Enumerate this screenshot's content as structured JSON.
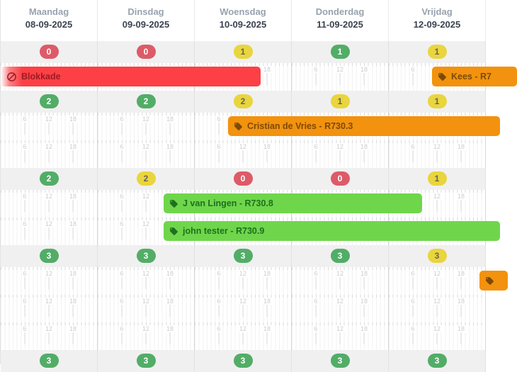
{
  "header": {
    "days": [
      {
        "name": "Maandag",
        "date": "08-09-2025"
      },
      {
        "name": "Dinsdag",
        "date": "09-09-2025"
      },
      {
        "name": "Woensdag",
        "date": "10-09-2025"
      },
      {
        "name": "Donderdag",
        "date": "11-09-2025"
      },
      {
        "name": "Vrijdag",
        "date": "12-09-2025"
      }
    ]
  },
  "timeline": {
    "tick_labels": [
      "6",
      "12",
      "18"
    ]
  },
  "rows": [
    {
      "badges": [
        {
          "value": "0",
          "color": "red"
        },
        {
          "value": "0",
          "color": "red"
        },
        {
          "value": "1",
          "color": "yellow"
        },
        {
          "value": "1",
          "color": "green"
        },
        {
          "value": "1",
          "color": "yellow"
        }
      ]
    },
    {
      "badges": [
        {
          "value": "2",
          "color": "green"
        },
        {
          "value": "2",
          "color": "green"
        },
        {
          "value": "2",
          "color": "yellow"
        },
        {
          "value": "1",
          "color": "yellow"
        },
        {
          "value": "1",
          "color": "yellow"
        }
      ]
    },
    {
      "badges": [
        {
          "value": "2",
          "color": "green"
        },
        {
          "value": "2",
          "color": "yellow"
        },
        {
          "value": "0",
          "color": "red"
        },
        {
          "value": "0",
          "color": "red"
        },
        {
          "value": "1",
          "color": "yellow"
        }
      ]
    },
    {
      "badges": [
        {
          "value": "3",
          "color": "green"
        },
        {
          "value": "3",
          "color": "green"
        },
        {
          "value": "3",
          "color": "green"
        },
        {
          "value": "3",
          "color": "green"
        },
        {
          "value": "3",
          "color": "yellow"
        }
      ]
    },
    {
      "badges": [
        {
          "value": "3",
          "color": "green"
        },
        {
          "value": "3",
          "color": "green"
        },
        {
          "value": "3",
          "color": "green"
        },
        {
          "value": "3",
          "color": "green"
        },
        {
          "value": "3",
          "color": "green"
        }
      ]
    }
  ],
  "events": {
    "blokkade": {
      "label": "Blokkade",
      "type": "blocked",
      "icon": "no-entry-icon"
    },
    "kees": {
      "label": "Kees - R7",
      "type": "reservation",
      "icon": "tag-icon"
    },
    "cristian": {
      "label": "Cristian de Vries - R730.3",
      "type": "reservation",
      "icon": "tag-icon"
    },
    "j_van_lingen": {
      "label": "J van Lingen - R730.8",
      "type": "reservation",
      "icon": "tag-icon"
    },
    "john_tester": {
      "label": "john tester - R730.9",
      "type": "reservation",
      "icon": "tag-icon"
    },
    "unlabeled": {
      "label": "",
      "type": "reservation",
      "icon": "tag-icon"
    }
  },
  "colors": {
    "badge_red": "#dd5b68",
    "badge_green": "#52ad67",
    "badge_yellow": "#e9d53d",
    "event_blocked_bg": "#fc4046",
    "event_blocked_text": "#9e1b22",
    "event_orange_bg": "#f2920e",
    "event_orange_text": "#7c4a08",
    "event_green_bg": "#6fd64b",
    "event_green_text": "#1e701e"
  }
}
